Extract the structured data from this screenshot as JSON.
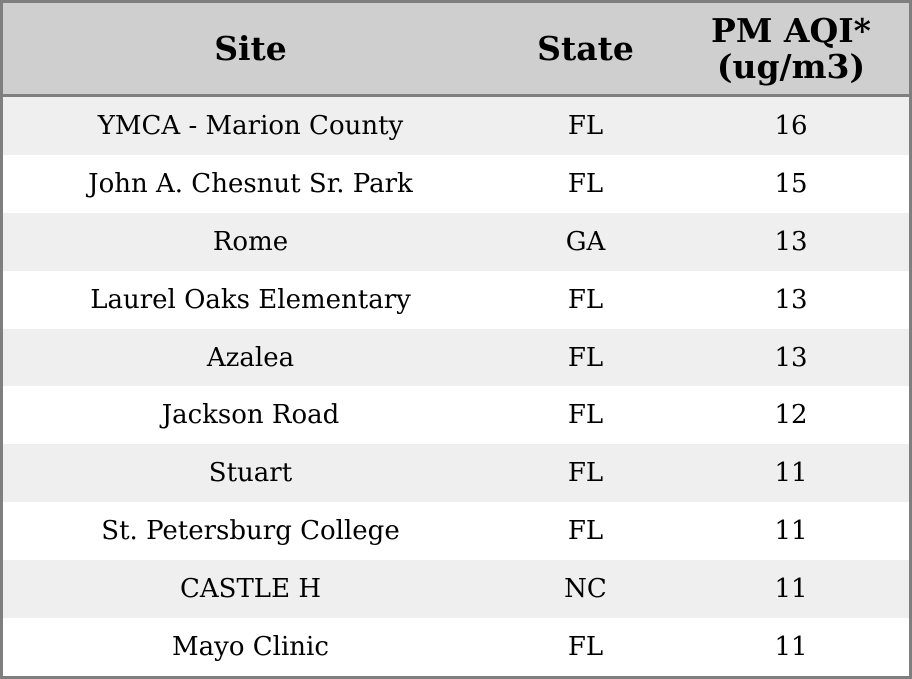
{
  "chart_data": {
    "type": "table",
    "columns": [
      "Site",
      "State",
      "PM AQI*\n(ug/m3)"
    ],
    "rows": [
      {
        "site": "YMCA - Marion County",
        "state": "FL",
        "aqi": "16"
      },
      {
        "site": "John A. Chesnut Sr. Park",
        "state": "FL",
        "aqi": "15"
      },
      {
        "site": "Rome",
        "state": "GA",
        "aqi": "13"
      },
      {
        "site": "Laurel Oaks Elementary",
        "state": "FL",
        "aqi": "13"
      },
      {
        "site": "Azalea",
        "state": "FL",
        "aqi": "13"
      },
      {
        "site": "Jackson Road",
        "state": "FL",
        "aqi": "12"
      },
      {
        "site": "Stuart",
        "state": "FL",
        "aqi": "11"
      },
      {
        "site": "St. Petersburg College",
        "state": "FL",
        "aqi": "11"
      },
      {
        "site": "CASTLE H",
        "state": "NC",
        "aqi": "11"
      },
      {
        "site": "Mayo Clinic",
        "state": "FL",
        "aqi": "11"
      }
    ]
  },
  "colors": {
    "header_bg": "#cfcfcf",
    "row_shade": "#efefef",
    "row_plain": "#ffffff",
    "border": "#7f7f7f"
  }
}
